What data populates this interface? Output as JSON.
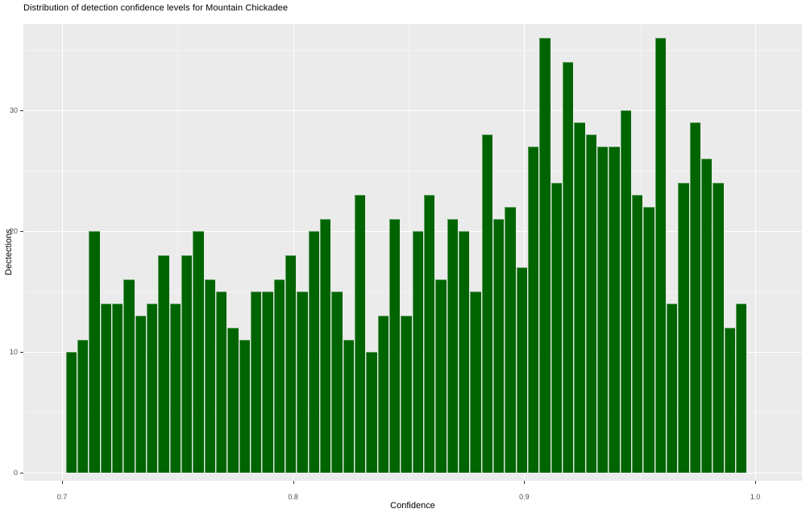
{
  "chart_data": {
    "type": "bar",
    "subtype": "histogram",
    "title": "Distribution of detection confidence levels for Mountain Chickadee",
    "xlabel": "Confidence",
    "ylabel": "Dectections",
    "bin_start": 0.7016,
    "bin_width": 0.005,
    "counts": [
      10,
      11,
      20,
      14,
      14,
      16,
      13,
      14,
      18,
      14,
      18,
      20,
      16,
      15,
      12,
      11,
      15,
      15,
      16,
      18,
      15,
      20,
      21,
      15,
      11,
      23,
      10,
      13,
      21,
      13,
      20,
      23,
      16,
      21,
      20,
      15,
      28,
      21,
      22,
      17,
      27,
      36,
      24,
      34,
      29,
      28,
      27,
      27,
      30,
      23,
      22,
      36,
      14,
      24,
      29,
      26,
      24,
      12,
      14
    ],
    "x_ticks": [
      {
        "value": 0.7,
        "label": "0.7"
      },
      {
        "value": 0.8,
        "label": "0.8"
      },
      {
        "value": 0.9,
        "label": "0.9"
      },
      {
        "value": 1.0,
        "label": "1.0"
      }
    ],
    "y_ticks": [
      {
        "value": 0,
        "label": "0"
      },
      {
        "value": 10,
        "label": "10"
      },
      {
        "value": 20,
        "label": "20"
      },
      {
        "value": 30,
        "label": "30"
      }
    ],
    "x_minor": [
      0.75,
      0.85,
      0.95
    ],
    "y_minor": [
      5,
      15,
      25,
      35
    ],
    "xlim": [
      0.683,
      1.02
    ],
    "ylim": [
      0,
      37
    ],
    "grid": "on",
    "legend": "none",
    "colors": {
      "bar_fill": "#006400",
      "panel_background": "#EBEBEB",
      "grid_major": "#FFFFFF",
      "grid_minor": "#F3F3F3",
      "tick_label": "#4D4D4D",
      "text": "#000000",
      "page_background": "#FFFFFF"
    }
  }
}
